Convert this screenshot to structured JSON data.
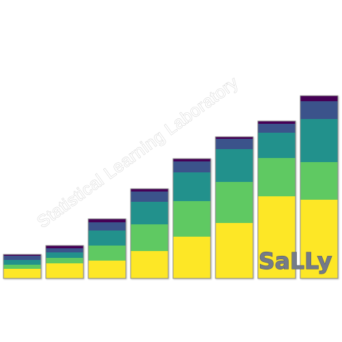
{
  "logo": {
    "watermark": "Statistical Learning Laboratory",
    "brand": "SaLLy"
  },
  "bars": {
    "count": 8,
    "layer_colors": [
      "#fde725",
      "#5ec962",
      "#21918c",
      "#3b528b",
      "#440154"
    ],
    "outline_color": "#8a8a8a"
  }
}
